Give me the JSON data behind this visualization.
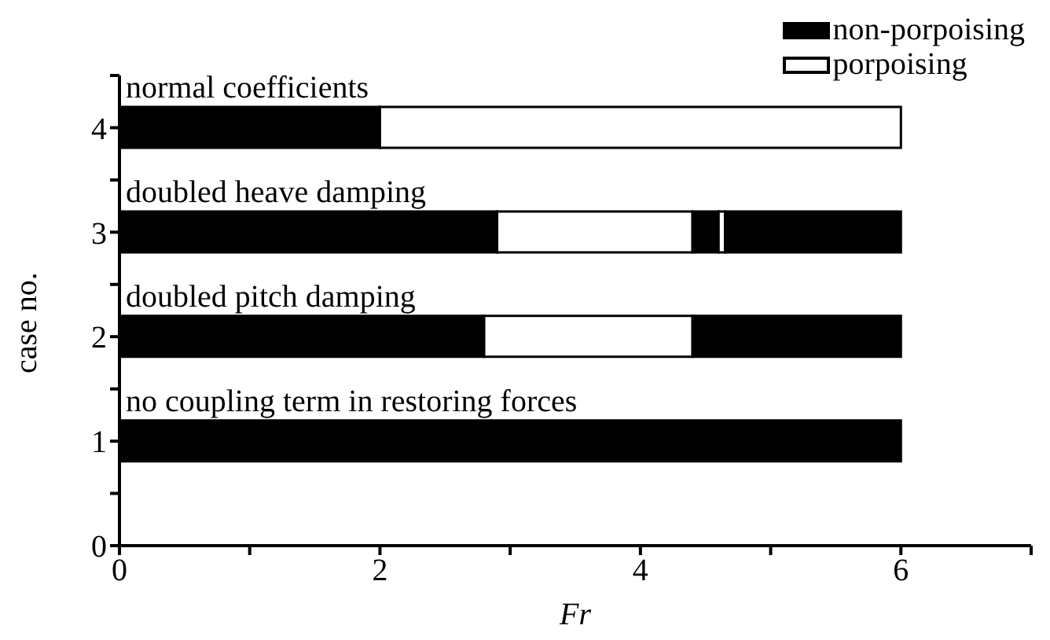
{
  "chart_data": {
    "type": "bar",
    "orientation": "horizontal",
    "stacked": true,
    "categories": [
      "4",
      "3",
      "2",
      "1",
      "0"
    ],
    "series": [
      {
        "name": "non-porpoising",
        "color": "#000000",
        "values": [
          2,
          2.9,
          2.8,
          6,
          null
        ]
      },
      {
        "name": "porpoising",
        "color": "#ffffff",
        "values": [
          4,
          1.5,
          1.6,
          null,
          null
        ]
      },
      {
        "color": "#000000",
        "values": [
          null,
          0.2,
          1.6,
          null,
          null
        ]
      },
      {
        "color": "#ffffff",
        "values": [
          null,
          0.05,
          null,
          null,
          null
        ]
      },
      {
        "color": "#000000",
        "values": [
          null,
          1.35,
          null,
          null,
          null
        ]
      }
    ],
    "xlim": [
      0,
      7
    ],
    "xticks": [
      0,
      {
        "value": 1,
        "label": null
      },
      2,
      {
        "value": 3,
        "label": null
      },
      4,
      {
        "value": 5,
        "label": null
      },
      6,
      {
        "value": 7,
        "label": null
      }
    ],
    "xlabel": "Fr",
    "ylabel": "case no.",
    "annotations": [
      "normal coefficients",
      "doubled heave damping",
      "doubled pitch damping",
      "no coupling term in restoring forces"
    ],
    "legend": "top right",
    "grid": false
  }
}
